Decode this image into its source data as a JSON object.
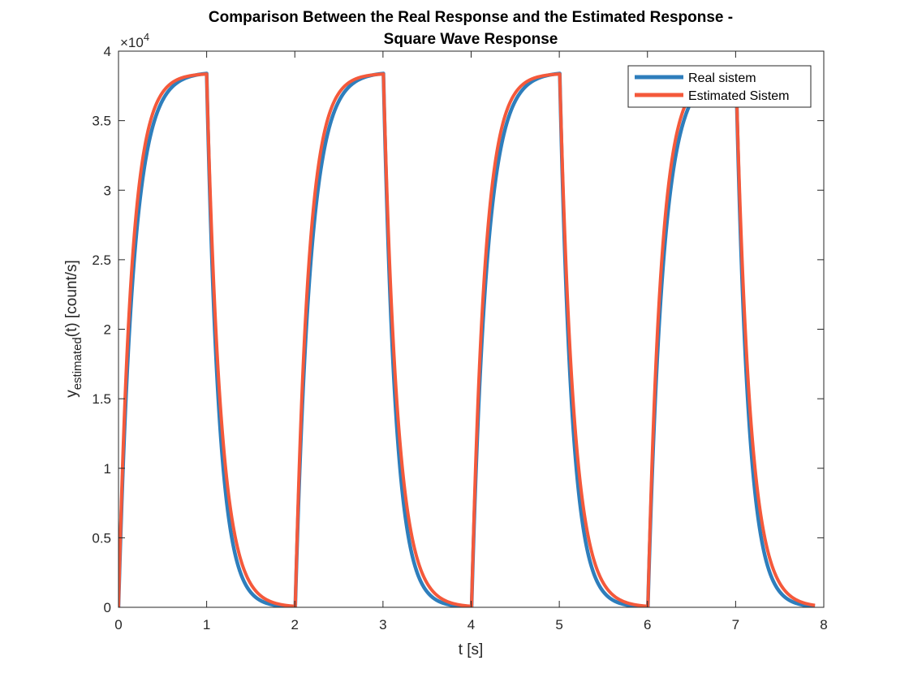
{
  "chart_data": {
    "type": "line",
    "title": [
      "Comparison Between the Real Response and the Estimated Response -",
      "Square Wave Response"
    ],
    "xlabel": "t [s]",
    "ylabel": {
      "base": "y",
      "subscript": "estimated",
      "suffix": "(t) [count/s]"
    },
    "xlim": [
      0,
      8
    ],
    "ylim": [
      0,
      40000
    ],
    "x_ticks": [
      0,
      1,
      2,
      3,
      4,
      5,
      6,
      7,
      8
    ],
    "y_ticks": [
      0,
      5000,
      10000,
      15000,
      20000,
      25000,
      30000,
      35000,
      40000
    ],
    "y_tick_labels": [
      "0",
      "0.5",
      "1",
      "1.5",
      "2",
      "2.5",
      "3",
      "3.5",
      "4"
    ],
    "y_exponent": {
      "base": "×10",
      "power": "4"
    },
    "grid": false,
    "legend_position": "top-right",
    "square_wave": {
      "period_s": 2,
      "high_duration_s": 1,
      "end_s": 7.9
    },
    "series": [
      {
        "name": "Real sistem",
        "color": "#2e7ebc",
        "steady_state": 38500,
        "rise_time_constant_s": 0.17,
        "fall_time_constant_s": 0.14
      },
      {
        "name": "Estimated Sistem",
        "color": "#f4593b",
        "steady_state": 38400,
        "rise_time_constant_s": 0.15,
        "fall_time_constant_s": 0.16
      }
    ]
  }
}
